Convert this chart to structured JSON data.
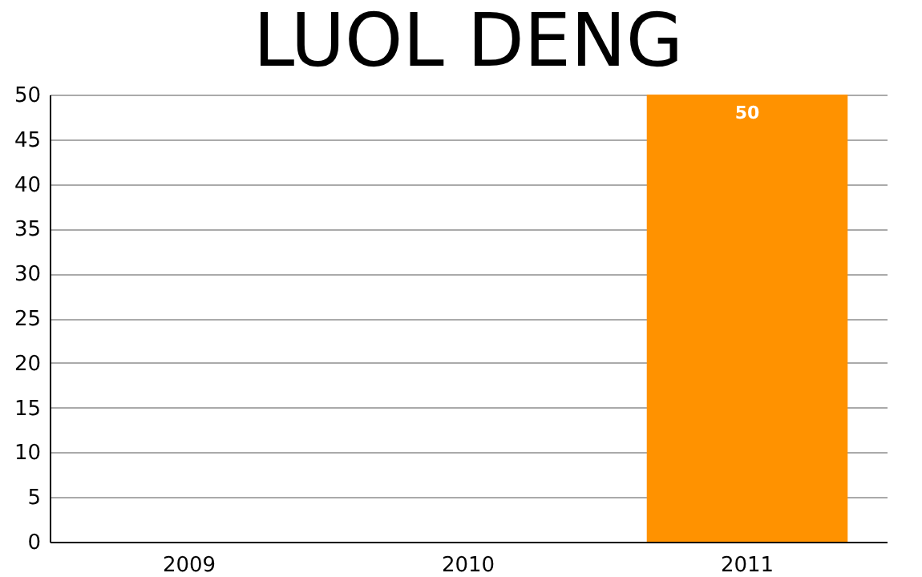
{
  "chart_data": {
    "type": "bar",
    "title": "LUOL DENG",
    "categories": [
      "2009",
      "2010",
      "2011"
    ],
    "values": [
      0,
      0,
      50
    ],
    "value_labels": [
      null,
      null,
      "50"
    ],
    "color": "#ff9200",
    "ylim": [
      0,
      50
    ],
    "yticks": [
      0,
      5,
      10,
      15,
      20,
      25,
      30,
      35,
      40,
      45,
      50
    ],
    "grid": "y"
  }
}
